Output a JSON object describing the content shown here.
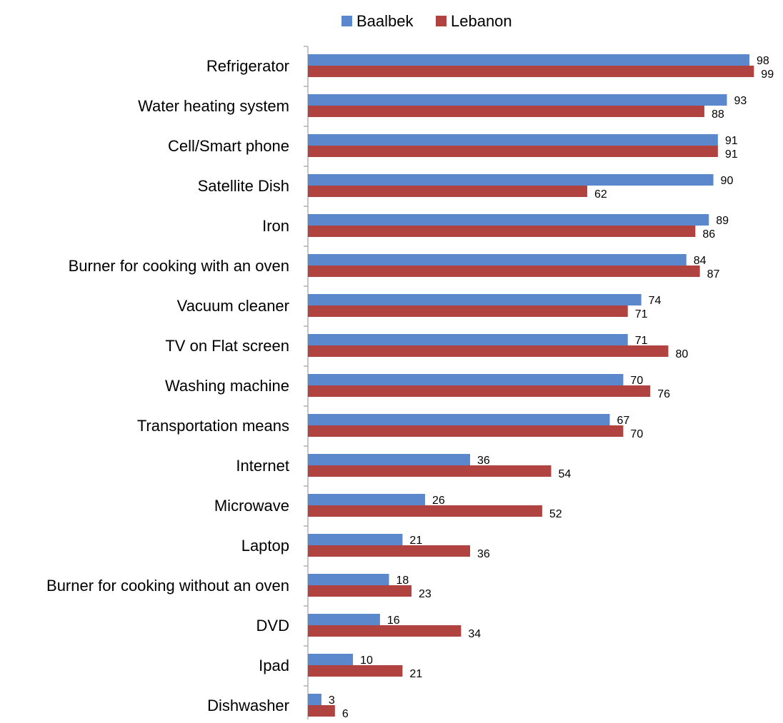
{
  "chart_data": {
    "type": "bar",
    "orientation": "horizontal",
    "categories": [
      "Refrigerator",
      "Water heating system",
      "Cell/Smart phone",
      "Satellite Dish",
      "Iron",
      "Burner for cooking with an oven",
      "Vacuum cleaner",
      "TV on Flat screen",
      "Washing machine",
      "Transportation means",
      "Internet",
      "Microwave",
      "Laptop",
      "Burner for cooking without an oven",
      "DVD",
      "Ipad",
      "Dishwasher"
    ],
    "series": [
      {
        "name": "Baalbek",
        "color": "#5B87CC",
        "values": [
          98,
          93,
          91,
          90,
          89,
          84,
          74,
          71,
          70,
          67,
          36,
          26,
          21,
          18,
          16,
          10,
          3
        ]
      },
      {
        "name": "Lebanon",
        "color": "#B04340",
        "values": [
          99,
          88,
          91,
          62,
          86,
          87,
          71,
          80,
          76,
          70,
          54,
          52,
          36,
          23,
          34,
          21,
          6
        ]
      }
    ],
    "xlim": [
      0,
      100
    ],
    "grid": false,
    "legend_position": "top"
  }
}
